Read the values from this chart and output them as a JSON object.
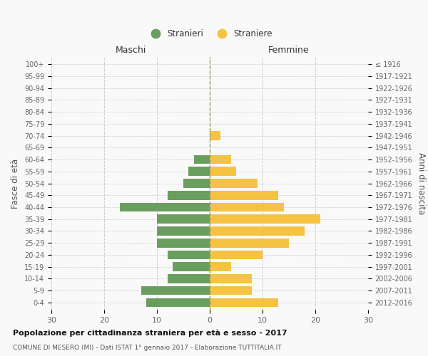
{
  "age_groups": [
    "0-4",
    "5-9",
    "10-14",
    "15-19",
    "20-24",
    "25-29",
    "30-34",
    "35-39",
    "40-44",
    "45-49",
    "50-54",
    "55-59",
    "60-64",
    "65-69",
    "70-74",
    "75-79",
    "80-84",
    "85-89",
    "90-94",
    "95-99",
    "100+"
  ],
  "birth_years": [
    "2012-2016",
    "2007-2011",
    "2002-2006",
    "1997-2001",
    "1992-1996",
    "1987-1991",
    "1982-1986",
    "1977-1981",
    "1972-1976",
    "1967-1971",
    "1962-1966",
    "1957-1961",
    "1952-1956",
    "1947-1951",
    "1942-1946",
    "1937-1941",
    "1932-1936",
    "1927-1931",
    "1922-1926",
    "1917-1921",
    "≤ 1916"
  ],
  "males": [
    -12,
    -13,
    -8,
    -7,
    -8,
    -10,
    -10,
    -10,
    -17,
    -8,
    -5,
    -4,
    -3,
    0,
    0,
    0,
    0,
    0,
    0,
    0,
    0
  ],
  "females": [
    13,
    8,
    8,
    4,
    10,
    15,
    18,
    21,
    14,
    13,
    9,
    5,
    4,
    0,
    2,
    0,
    0,
    0,
    0,
    0,
    0
  ],
  "male_color": "#6a9e5e",
  "female_color": "#f5c242",
  "title": "Popolazione per cittadinanza straniera per età e sesso - 2017",
  "subtitle": "COMUNE DI MESERO (MI) - Dati ISTAT 1° gennaio 2017 - Elaborazione TUTTITALIA.IT",
  "ylabel_left": "Fasce di età",
  "ylabel_right": "Anni di nascita",
  "xlabel_maschi": "Maschi",
  "xlabel_femmine": "Femmine",
  "legend_male": "Stranieri",
  "legend_female": "Straniere",
  "xlim": [
    -30,
    30
  ],
  "bg_color": "#f9f9f9",
  "grid_color": "#cccccc",
  "bar_height": 0.75
}
